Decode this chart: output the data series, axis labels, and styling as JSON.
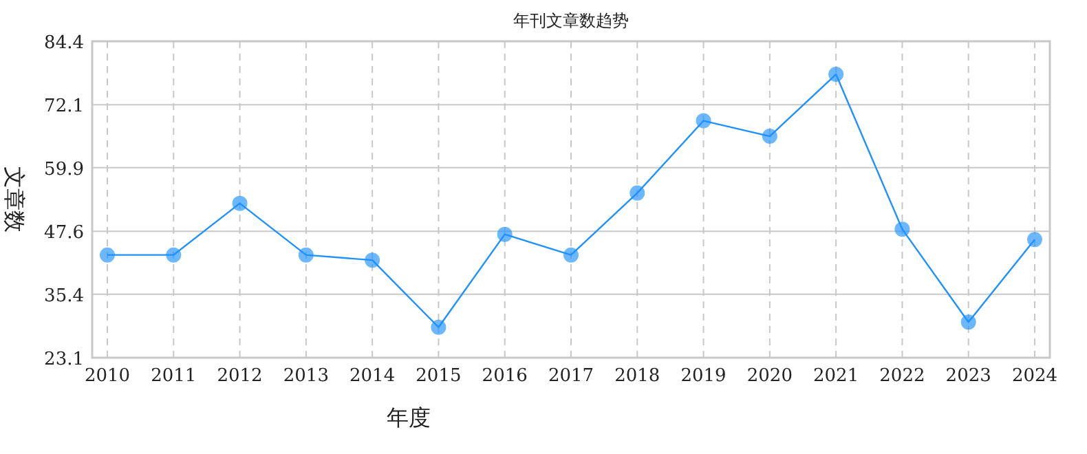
{
  "chart_data": {
    "type": "line",
    "title": "年刊文章数趋势",
    "xlabel": "年度",
    "ylabel": "文章数",
    "categories": [
      "2010",
      "2011",
      "2012",
      "2013",
      "2014",
      "2015",
      "2016",
      "2017",
      "2018",
      "2019",
      "2020",
      "2021",
      "2022",
      "2023",
      "2024"
    ],
    "series": [
      {
        "color": "#1e90ff",
        "values": [
          43,
          43,
          53,
          43,
          42,
          29,
          47,
          43,
          55,
          69,
          66,
          78,
          48,
          30,
          46
        ]
      }
    ],
    "ylim": [
      23.1,
      84.4
    ],
    "yticks": [
      23.1,
      35.4,
      47.6,
      59.9,
      72.1,
      84.4
    ],
    "grid": true,
    "marker": "circle",
    "line_style": "solid"
  }
}
